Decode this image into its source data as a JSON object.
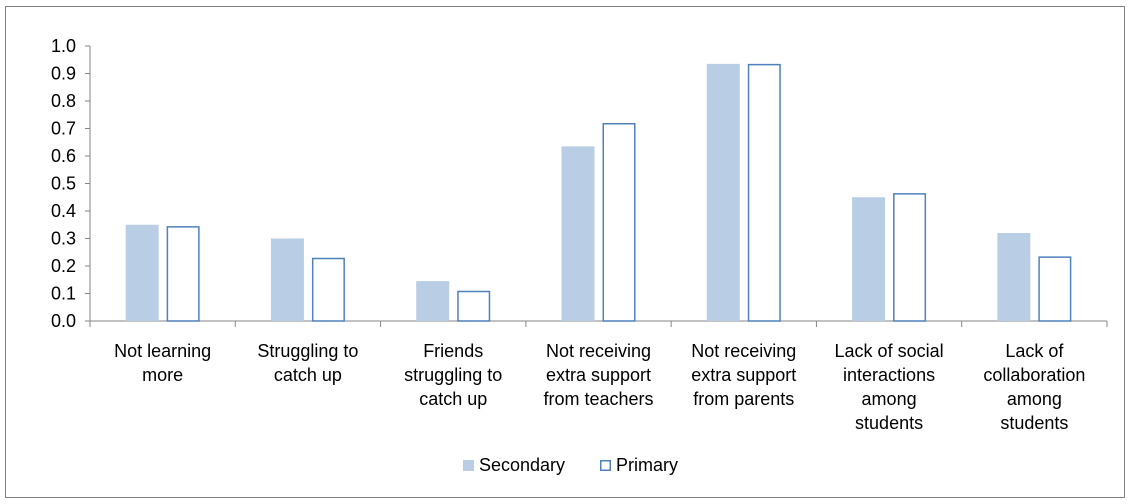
{
  "chart_data": {
    "type": "bar",
    "categories": [
      [
        "Not learning",
        "more"
      ],
      [
        "Struggling to",
        "catch up"
      ],
      [
        "Friends",
        "struggling to",
        "catch up"
      ],
      [
        "Not receiving",
        "extra support",
        "from teachers"
      ],
      [
        "Not receiving",
        "extra support",
        "from parents"
      ],
      [
        "Lack of social",
        "interactions",
        "among",
        "students"
      ],
      [
        "Lack of",
        "collaboration",
        "among",
        "students"
      ]
    ],
    "series": [
      {
        "name": "Secondary",
        "values": [
          0.35,
          0.3,
          0.145,
          0.635,
          0.935,
          0.45,
          0.32
        ],
        "color": "#b9cde5",
        "style": "filled"
      },
      {
        "name": "Primary",
        "values": [
          0.345,
          0.23,
          0.11,
          0.72,
          0.935,
          0.465,
          0.235
        ],
        "color": "#4f81bd",
        "style": "outline"
      }
    ],
    "ylim": [
      0,
      1.0
    ],
    "yticks": [
      "0.0",
      "0.1",
      "0.2",
      "0.3",
      "0.4",
      "0.5",
      "0.6",
      "0.7",
      "0.8",
      "0.9",
      "1.0"
    ],
    "grid": false,
    "legend": "bottom-center",
    "title": "",
    "xlabel": "",
    "ylabel": ""
  }
}
